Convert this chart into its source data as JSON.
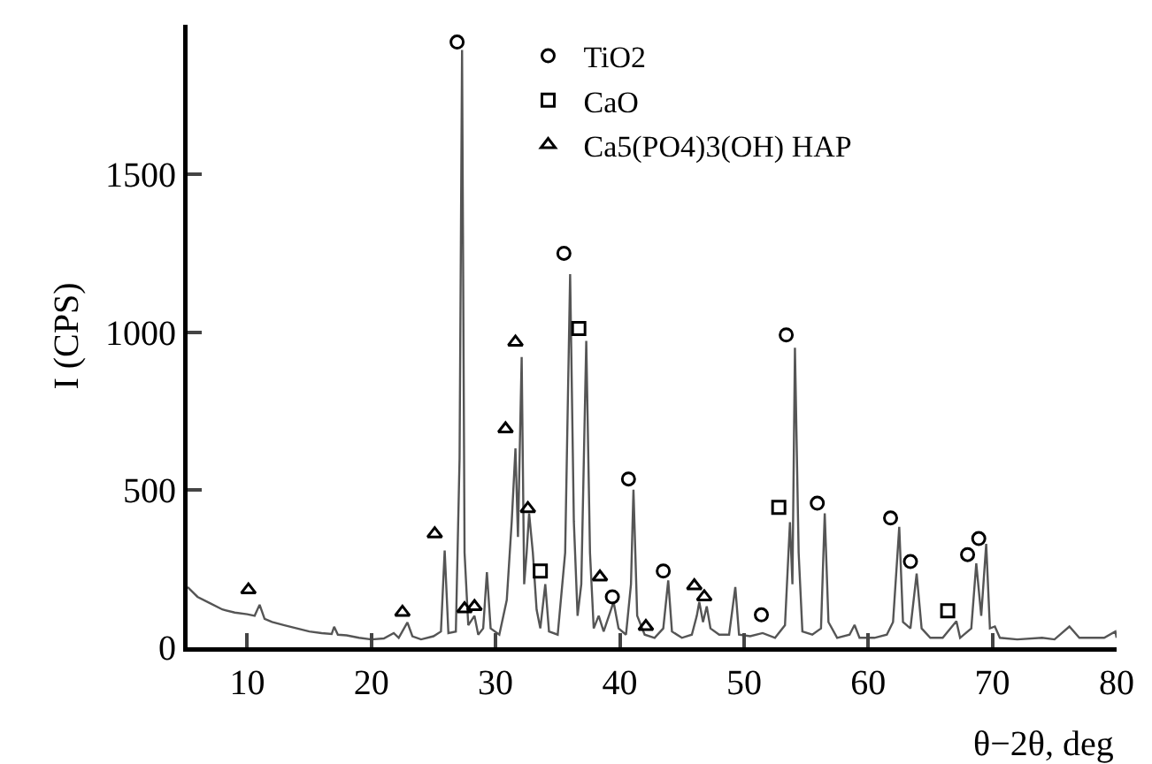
{
  "chart_data": {
    "type": "line",
    "xlabel": "θ−2θ, deg",
    "ylabel": "I (CPS)",
    "xlim": [
      5.2,
      80
    ],
    "ylim": [
      0,
      1975
    ],
    "xticks": [
      10,
      20,
      30,
      40,
      50,
      60,
      70,
      80
    ],
    "yticks": [
      0,
      500,
      1000,
      1500
    ],
    "legend": "top",
    "grid": false,
    "series": [
      {
        "color": "#555555",
        "line_style": "solid",
        "x": [
          5.2,
          6,
          7,
          8,
          9,
          10,
          10.6,
          11,
          11.4,
          12,
          13,
          14,
          15,
          16,
          16.8,
          17,
          17.3,
          18,
          19,
          20,
          21,
          21.8,
          22.2,
          22.9,
          23.3,
          24,
          25,
          25.6,
          25.9,
          26.2,
          26.8,
          27.1,
          27.3,
          27.5,
          27.8,
          28.3,
          28.6,
          29.0,
          29.3,
          29.6,
          30.3,
          30.9,
          31.3,
          31.6,
          31.8,
          32.1,
          32.3,
          32.5,
          32.7,
          33.0,
          33.3,
          33.6,
          34.0,
          34.3,
          35.0,
          35.6,
          36.0,
          36.3,
          36.6,
          36.9,
          37.3,
          37.6,
          37.9,
          38.3,
          38.7,
          39.3,
          39.5,
          39.9,
          40.5,
          40.9,
          41.1,
          41.4,
          42,
          42.8,
          43.5,
          43.9,
          44.2,
          45,
          45.8,
          46.2,
          46.4,
          46.7,
          47.0,
          47.3,
          48,
          48.8,
          49.3,
          49.6,
          50.5,
          51.5,
          52.5,
          53.3,
          53.7,
          53.9,
          54.1,
          54.4,
          54.7,
          55.5,
          56.2,
          56.5,
          56.8,
          57.5,
          58.5,
          58.9,
          59.3,
          60.5,
          61.5,
          62.0,
          62.5,
          62.8,
          63.4,
          63.9,
          64.3,
          65,
          66,
          67.1,
          67.4,
          68.3,
          68.7,
          69.1,
          69.5,
          69.8,
          70.2,
          70.6,
          72,
          74,
          75,
          76.2,
          77,
          79,
          79.9,
          80
        ],
        "values": [
          191,
          160,
          140,
          120,
          110,
          105,
          100,
          135,
          90,
          80,
          70,
          60,
          50,
          45,
          42,
          65,
          40,
          38,
          30,
          25,
          28,
          45,
          30,
          79,
          35,
          25,
          35,
          50,
          307,
          45,
          50,
          600,
          1895,
          300,
          70,
          100,
          40,
          60,
          238,
          60,
          40,
          150,
          400,
          631,
          350,
          921,
          200,
          300,
          425,
          300,
          120,
          60,
          200,
          50,
          40,
          300,
          1184,
          400,
          100,
          200,
          972,
          300,
          60,
          100,
          50,
          120,
          144,
          60,
          40,
          200,
          500,
          100,
          40,
          30,
          60,
          212,
          50,
          30,
          40,
          100,
          144,
          80,
          130,
          60,
          40,
          40,
          191,
          40,
          35,
          45,
          30,
          70,
          397,
          200,
          950,
          300,
          50,
          40,
          60,
          425,
          80,
          30,
          40,
          71,
          30,
          30,
          40,
          80,
          382,
          80,
          60,
          234,
          60,
          30,
          30,
          83,
          30,
          60,
          266,
          100,
          328,
          60,
          66,
          30,
          25,
          30,
          25,
          66,
          30,
          30,
          50,
          30
        ]
      },
      {
        "type": "scatter",
        "name": "TiO2",
        "marker": "circle",
        "color": "#000000",
        "x": [
          26.9,
          35.5,
          40.7,
          39.4,
          43.5,
          51.4,
          53.4,
          55.9,
          61.8,
          63.4,
          68.0,
          68.9
        ],
        "values": [
          1920,
          1250,
          534,
          160,
          242,
          103,
          991,
          457,
          410,
          272,
          294,
          345
        ]
      },
      {
        "type": "scatter",
        "name": "CaO",
        "marker": "square",
        "color": "#000000",
        "x": [
          36.7,
          33.6,
          52.8,
          66.4
        ],
        "values": [
          1011,
          242,
          444,
          116
        ]
      },
      {
        "type": "scatter",
        "name": "Ca5(PO4)3(OH) HAP",
        "marker": "triangle",
        "color": "#000000",
        "x": [
          10.1,
          22.5,
          25.1,
          27.5,
          28.3,
          30.8,
          31.6,
          32.6,
          38.4,
          42.1,
          46.0,
          46.8
        ],
        "values": [
          182,
          111,
          360,
          122,
          129,
          693,
          968,
          440,
          223,
          66,
          195,
          160
        ]
      }
    ]
  }
}
